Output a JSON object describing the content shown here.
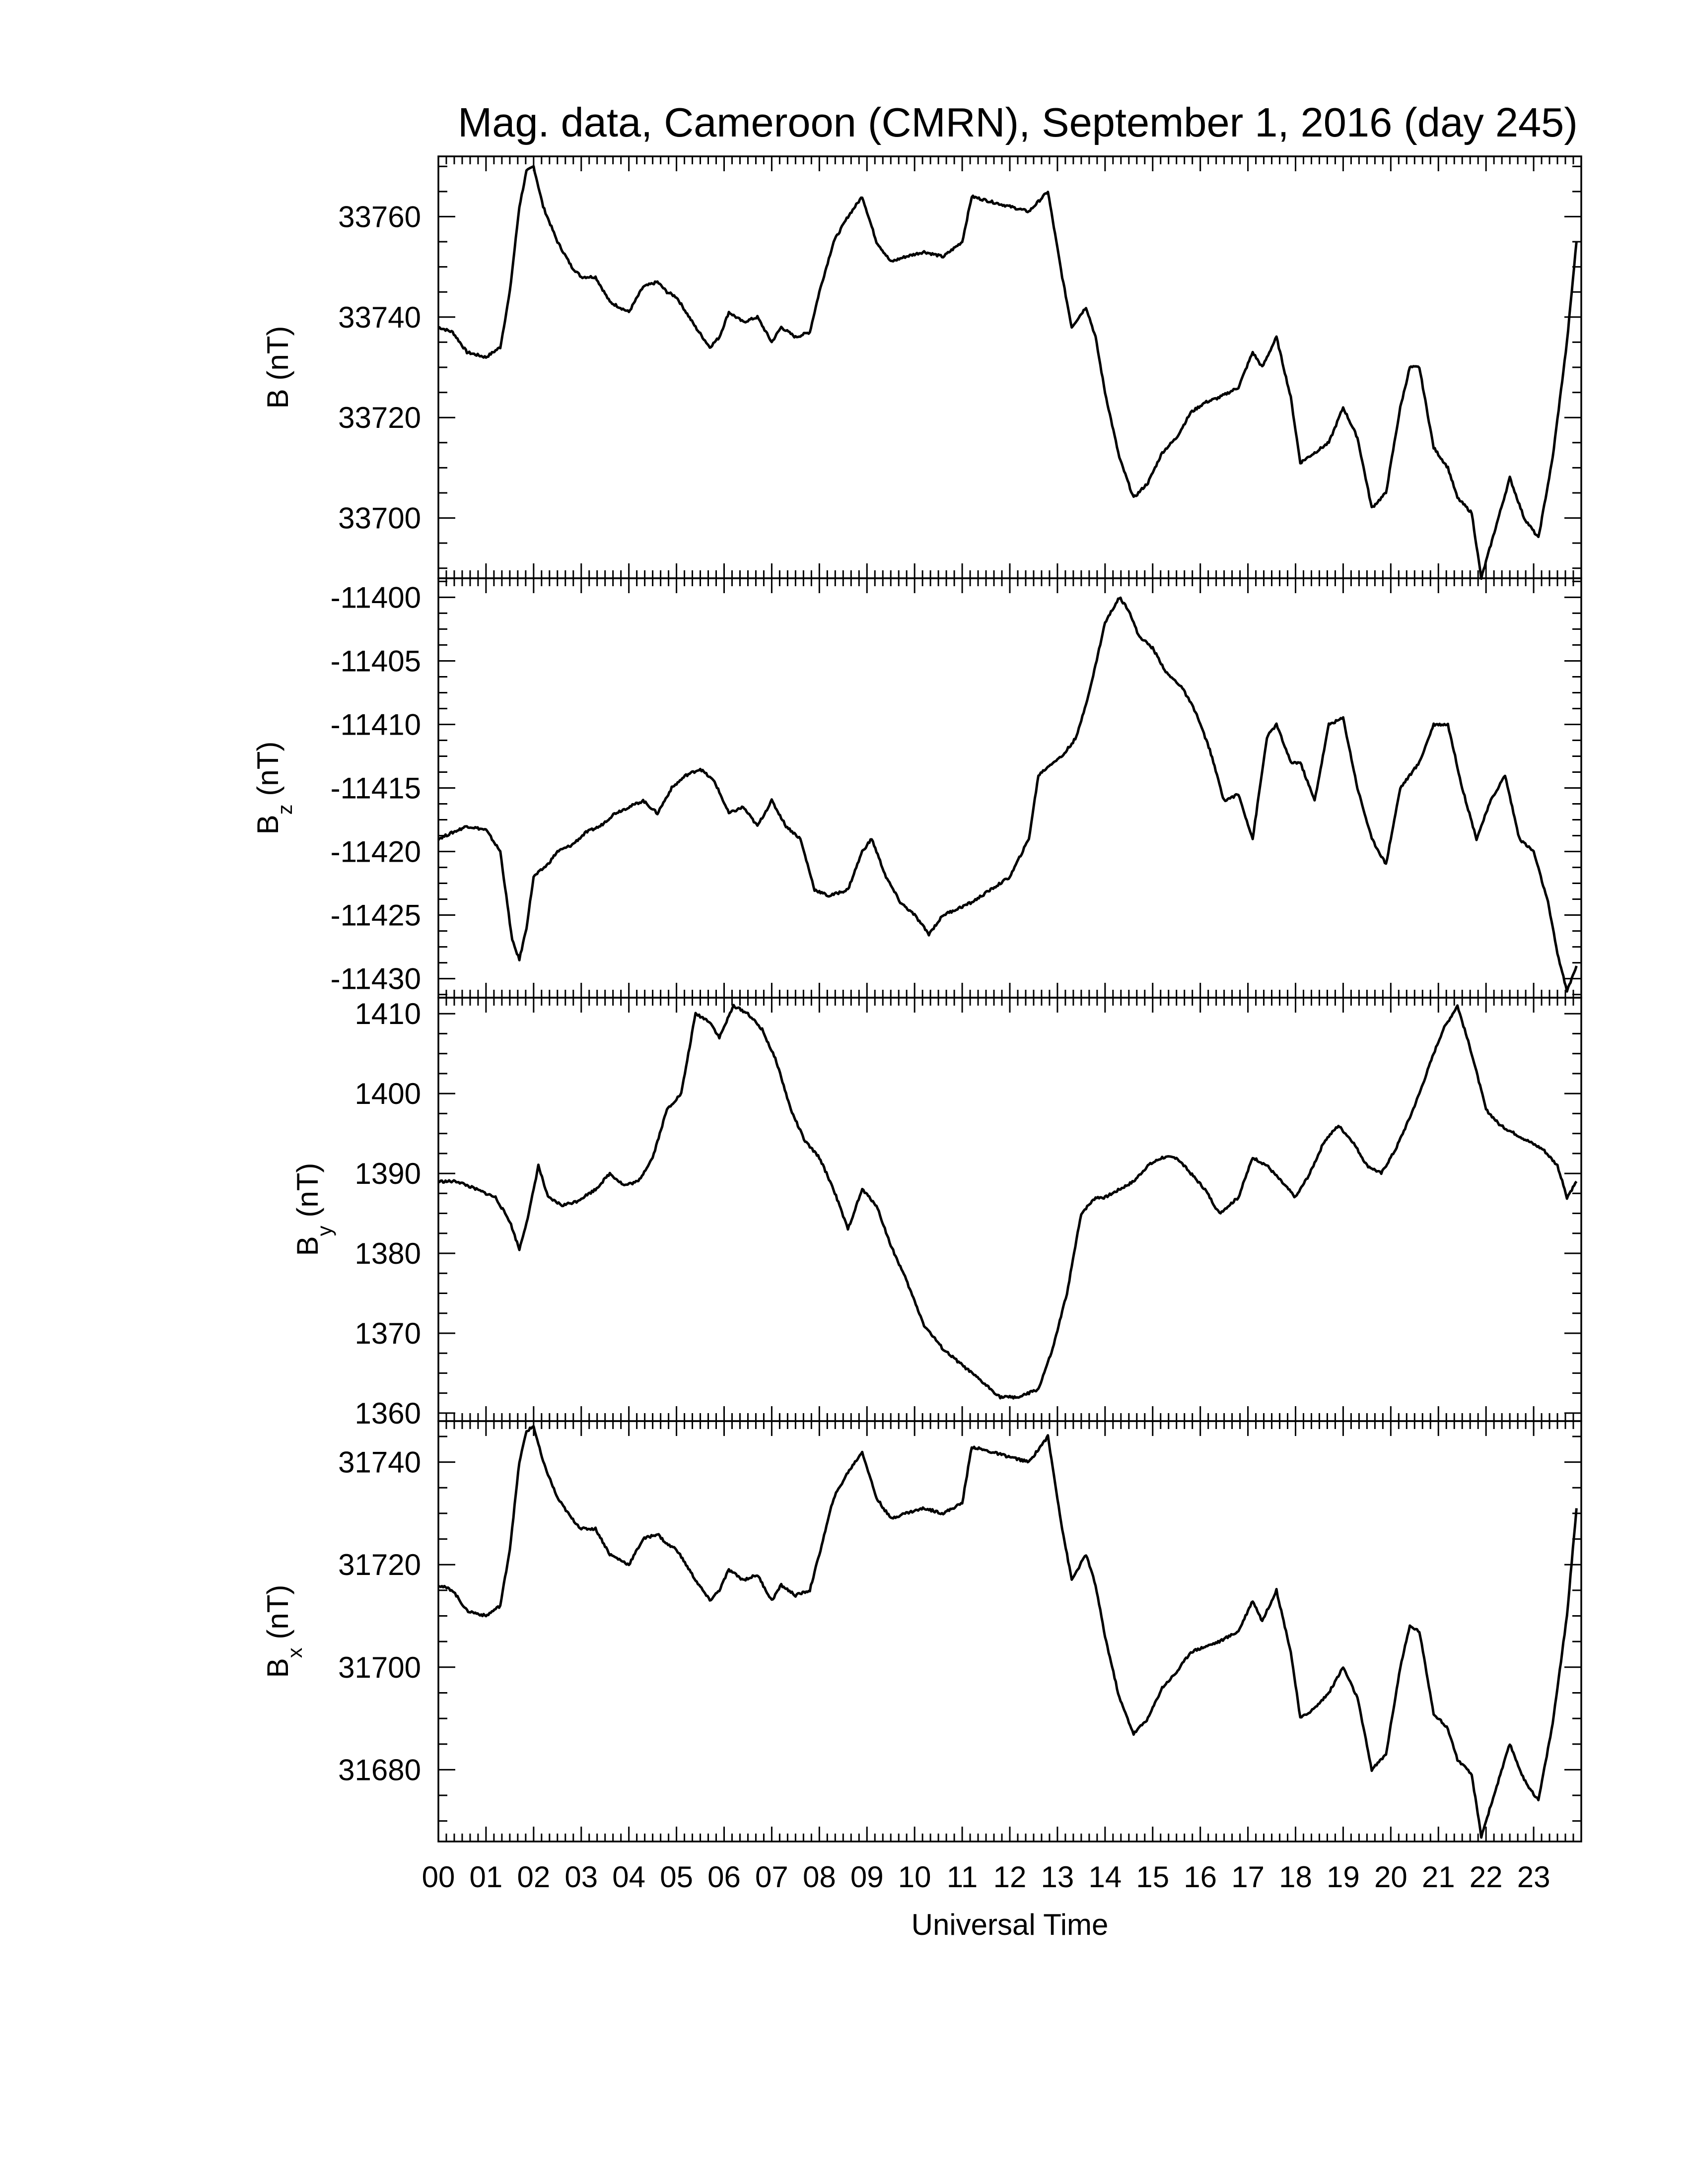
{
  "figure": {
    "title": "Mag. data, Cameroon (CMRN), September 1, 2016 (day 245)",
    "xlabel": "Universal Time",
    "xticks": [
      "00",
      "01",
      "02",
      "03",
      "04",
      "05",
      "06",
      "07",
      "08",
      "09",
      "10",
      "11",
      "12",
      "13",
      "14",
      "15",
      "16",
      "17",
      "18",
      "19",
      "20",
      "21",
      "22",
      "23"
    ]
  },
  "chart_data": [
    {
      "type": "line",
      "ylabel_main": "B",
      "ylabel_sub": "",
      "ylabel_unit": "(nT)",
      "yticks": [
        33700,
        33720,
        33740,
        33760
      ],
      "ylim": [
        33688,
        33772
      ],
      "x": [
        0,
        0.3,
        0.6,
        1.0,
        1.3,
        1.5,
        1.7,
        1.85,
        2.0,
        2.2,
        2.5,
        2.8,
        3.0,
        3.3,
        3.6,
        3.8,
        4.0,
        4.3,
        4.6,
        4.8,
        5.0,
        5.4,
        5.7,
        5.9,
        6.1,
        6.4,
        6.7,
        7.0,
        7.2,
        7.5,
        7.8,
        8.0,
        8.3,
        8.6,
        8.9,
        9.2,
        9.5,
        9.8,
        10.2,
        10.6,
        11.0,
        11.2,
        11.6,
        12.0,
        12.4,
        12.8,
        13.1,
        13.3,
        13.6,
        13.8,
        14.0,
        14.3,
        14.6,
        14.9,
        15.2,
        15.5,
        15.8,
        16.1,
        16.4,
        16.8,
        17.1,
        17.3,
        17.6,
        17.9,
        18.1,
        18.4,
        18.7,
        19.0,
        19.3,
        19.6,
        19.9,
        20.2,
        20.4,
        20.6,
        20.9,
        21.2,
        21.4,
        21.7,
        21.9,
        22.2,
        22.5,
        22.8,
        23.1,
        23.4,
        23.7,
        23.9
      ],
      "y": [
        33738,
        33737,
        33733,
        33732,
        33734,
        33745,
        33762,
        33769,
        33770,
        33762,
        33755,
        33750,
        33748,
        33748,
        33743,
        33742,
        33741,
        33746,
        33747,
        33745,
        33744,
        33738,
        33734,
        33736,
        33741,
        33739,
        33740,
        33735,
        33738,
        33736,
        33737,
        33745,
        33755,
        33760,
        33764,
        33755,
        33751,
        33752,
        33753,
        33752,
        33755,
        33764,
        33763,
        33762,
        33761,
        33765,
        33748,
        33738,
        33742,
        33736,
        33725,
        33712,
        33704,
        33707,
        33713,
        33716,
        33721,
        33723,
        33724,
        33726,
        33733,
        33730,
        33736,
        33724,
        33711,
        33713,
        33715,
        33722,
        33716,
        33702,
        33705,
        33722,
        33730,
        33730,
        33714,
        33710,
        33704,
        33701,
        33688,
        33698,
        33708,
        33700,
        33696,
        33712,
        33735,
        33755
      ]
    },
    {
      "type": "line",
      "ylabel_main": "B",
      "ylabel_sub": "z",
      "ylabel_unit": "(nT)",
      "yticks": [
        -11400,
        -11405,
        -11410,
        -11415,
        -11420,
        -11425,
        -11430
      ],
      "ylim": [
        -11431.5,
        -11398.5
      ],
      "x": [
        0,
        0.3,
        0.6,
        1.0,
        1.3,
        1.55,
        1.7,
        1.85,
        2.0,
        2.3,
        2.5,
        2.8,
        3.1,
        3.4,
        3.7,
        4.0,
        4.3,
        4.6,
        4.9,
        5.2,
        5.5,
        5.8,
        6.1,
        6.4,
        6.7,
        7.0,
        7.3,
        7.6,
        7.9,
        8.2,
        8.6,
        8.9,
        9.1,
        9.4,
        9.7,
        10.0,
        10.3,
        10.6,
        10.9,
        11.2,
        11.6,
        12.0,
        12.4,
        12.6,
        12.9,
        13.1,
        13.4,
        13.7,
        14.0,
        14.3,
        14.5,
        14.7,
        15.0,
        15.3,
        15.6,
        15.9,
        16.2,
        16.5,
        16.8,
        17.1,
        17.4,
        17.6,
        17.9,
        18.1,
        18.4,
        18.7,
        19.0,
        19.3,
        19.6,
        19.9,
        20.2,
        20.4,
        20.6,
        20.9,
        21.2,
        21.5,
        21.8,
        22.1,
        22.4,
        22.7,
        23.0,
        23.3,
        23.5,
        23.7,
        23.9
      ],
      "y": [
        -11419,
        -11418.5,
        -11418,
        -11418.3,
        -11420,
        -11427,
        -11428.5,
        -11426,
        -11422,
        -11421,
        -11420,
        -11419.5,
        -11418.5,
        -11418,
        -11417,
        -11416.5,
        -11416,
        -11417,
        -11415,
        -11414,
        -11413.5,
        -11414.5,
        -11417,
        -11416.5,
        -11418,
        -11416,
        -11418,
        -11419,
        -11423,
        -11423.5,
        -11423,
        -11420,
        -11419,
        -11422,
        -11424,
        -11425,
        -11426.5,
        -11425,
        -11424.5,
        -11424,
        -11423,
        -11422,
        -11419,
        -11414,
        -11413,
        -11412.5,
        -11411,
        -11407,
        -11402,
        -11400,
        -11401,
        -11403,
        -11404,
        -11406,
        -11407,
        -11409,
        -11412,
        -11416,
        -11415.5,
        -11419,
        -11411,
        -11410,
        -11413,
        -11413,
        -11416,
        -11410,
        -11409.5,
        -11415,
        -11419,
        -11421,
        -11415,
        -11414,
        -11413,
        -11410,
        -11410,
        -11415,
        -11419,
        -11416,
        -11414,
        -11419,
        -11420,
        -11424,
        -11428,
        -11431,
        -11429
      ],
      "ylabel_note": ""
    },
    {
      "type": "line",
      "ylabel_main": "B",
      "ylabel_sub": "y",
      "ylabel_unit": "(nT)",
      "yticks": [
        1360,
        1370,
        1380,
        1390,
        1400,
        1410
      ],
      "ylim": [
        1359,
        1412
      ],
      "x": [
        0,
        0.4,
        0.8,
        1.2,
        1.5,
        1.7,
        1.9,
        2.1,
        2.3,
        2.6,
        2.9,
        3.3,
        3.6,
        3.9,
        4.2,
        4.5,
        4.8,
        5.1,
        5.4,
        5.7,
        5.9,
        6.2,
        6.5,
        6.8,
        7.1,
        7.4,
        7.7,
        8.0,
        8.3,
        8.6,
        8.9,
        9.2,
        9.5,
        9.8,
        10.2,
        10.6,
        11.0,
        11.4,
        11.8,
        12.2,
        12.6,
        12.9,
        13.2,
        13.5,
        13.8,
        14.0,
        14.3,
        14.6,
        14.9,
        15.2,
        15.5,
        15.8,
        16.1,
        16.4,
        16.8,
        17.1,
        17.4,
        17.7,
        18.0,
        18.3,
        18.6,
        18.9,
        19.2,
        19.5,
        19.8,
        20.1,
        20.4,
        20.6,
        20.9,
        21.1,
        21.4,
        21.7,
        22.0,
        22.3,
        22.6,
        22.9,
        23.2,
        23.5,
        23.7,
        23.9
      ],
      "y": [
        1389,
        1389,
        1388,
        1387,
        1384,
        1380.5,
        1385,
        1391,
        1387,
        1386,
        1386.5,
        1388,
        1390,
        1388.5,
        1389,
        1392,
        1398,
        1400,
        1410,
        1409,
        1407,
        1411,
        1410,
        1408,
        1404,
        1398,
        1394,
        1392,
        1388,
        1383,
        1388,
        1386,
        1381,
        1377,
        1371,
        1368,
        1366,
        1364,
        1362,
        1362,
        1363,
        1368,
        1375,
        1385,
        1387,
        1387,
        1388,
        1389,
        1391,
        1392,
        1392,
        1390,
        1388,
        1385,
        1387,
        1392,
        1391,
        1389,
        1387,
        1390,
        1394,
        1396,
        1394,
        1391,
        1390,
        1393,
        1397,
        1400,
        1405,
        1408,
        1411,
        1405,
        1398,
        1396,
        1395,
        1394,
        1393,
        1391,
        1387,
        1389
      ]
    },
    {
      "type": "line",
      "ylabel_main": "B",
      "ylabel_sub": "x",
      "ylabel_unit": "(nT)",
      "yticks": [
        31680,
        31700,
        31720,
        31740
      ],
      "ylim": [
        31666,
        31748
      ],
      "x": [
        0,
        0.3,
        0.6,
        1.0,
        1.3,
        1.5,
        1.7,
        1.85,
        2.0,
        2.2,
        2.5,
        2.8,
        3.0,
        3.3,
        3.6,
        3.8,
        4.0,
        4.3,
        4.6,
        4.8,
        5.0,
        5.4,
        5.7,
        5.9,
        6.1,
        6.4,
        6.7,
        7.0,
        7.2,
        7.5,
        7.8,
        8.0,
        8.3,
        8.6,
        8.9,
        9.2,
        9.5,
        9.8,
        10.2,
        10.6,
        11.0,
        11.2,
        11.6,
        12.0,
        12.4,
        12.8,
        13.1,
        13.3,
        13.6,
        13.8,
        14.0,
        14.3,
        14.6,
        14.9,
        15.2,
        15.5,
        15.8,
        16.1,
        16.4,
        16.8,
        17.1,
        17.3,
        17.6,
        17.9,
        18.1,
        18.4,
        18.7,
        19.0,
        19.3,
        19.6,
        19.9,
        20.2,
        20.4,
        20.6,
        20.9,
        21.2,
        21.4,
        21.7,
        21.9,
        22.2,
        22.5,
        22.8,
        23.1,
        23.4,
        23.7,
        23.9
      ],
      "y": [
        31716,
        31715,
        31711,
        31710,
        31712,
        31723,
        31740,
        31746,
        31747,
        31740,
        31733,
        31729,
        31727,
        31727,
        31722,
        31721,
        31720,
        31725,
        31726,
        31724,
        31723,
        31717,
        31713,
        31715,
        31719,
        31717,
        31718,
        31713,
        31716,
        31714,
        31715,
        31722,
        31733,
        31738,
        31742,
        31733,
        31729,
        31730,
        31731,
        31730,
        31732,
        31743,
        31742,
        31741,
        31740,
        31745,
        31727,
        31717,
        31722,
        31716,
        31706,
        31694,
        31687,
        31690,
        31696,
        31699,
        31703,
        31704,
        31705,
        31707,
        31713,
        31709,
        31715,
        31703,
        31690,
        31692,
        31695,
        31700,
        31694,
        31680,
        31683,
        31700,
        31708,
        31707,
        31691,
        31688,
        31682,
        31679,
        31667,
        31676,
        31685,
        31678,
        31674,
        31689,
        31710,
        31731
      ]
    }
  ]
}
